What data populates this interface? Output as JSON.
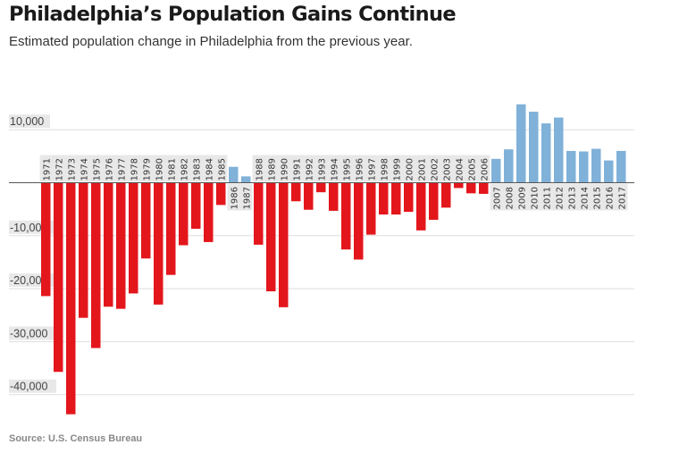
{
  "title": "Philadelphia’s Population Gains Continue",
  "subtitle": "Estimated population change in Philadelphia from the previous year.",
  "source": "Source: U.S. Census Bureau",
  "colors": {
    "negative": "#e3161c",
    "positive": "#7fb1d9",
    "grid": "#dddddd",
    "label_bg": "#e8e8e8"
  },
  "chart_data": {
    "type": "bar",
    "title": "Philadelphia’s Population Gains Continue",
    "xlabel": "",
    "ylabel": "",
    "ylim": [
      -45000,
      16000
    ],
    "yticks": [
      10000,
      0,
      -10000,
      -20000,
      -30000,
      -40000
    ],
    "ytick_labels": [
      "10,000",
      "",
      "-10,000",
      "-20,000",
      "-30,000",
      "-40,000"
    ],
    "grid": true,
    "categories": [
      "1971",
      "1972",
      "1973",
      "1974",
      "1975",
      "1976",
      "1977",
      "1978",
      "1979",
      "1980",
      "1981",
      "1982",
      "1983",
      "1984",
      "1985",
      "1986",
      "1987",
      "1988",
      "1989",
      "1990",
      "1991",
      "1992",
      "1993",
      "1994",
      "1995",
      "1996",
      "1997",
      "1998",
      "1999",
      "2000",
      "2001",
      "2002",
      "2003",
      "2004",
      "2005",
      "2006",
      "2007",
      "2008",
      "2009",
      "2010",
      "2011",
      "2012",
      "2013",
      "2014",
      "2015",
      "2016",
      "2017"
    ],
    "values": [
      -21400,
      -35700,
      -43700,
      -25500,
      -31200,
      -23400,
      -23800,
      -20900,
      -14300,
      -23000,
      -17400,
      -11800,
      -8700,
      -11200,
      -4200,
      3000,
      1200,
      -11700,
      -20500,
      -23500,
      -3500,
      -5100,
      -1800,
      -5300,
      -12600,
      -14500,
      -9800,
      -6000,
      -6000,
      -5500,
      -9000,
      -7000,
      -4700,
      -1000,
      -2000,
      -2100,
      4500,
      6300,
      14800,
      13400,
      11200,
      12300,
      6000,
      5900,
      6400,
      4200,
      6000
    ]
  }
}
